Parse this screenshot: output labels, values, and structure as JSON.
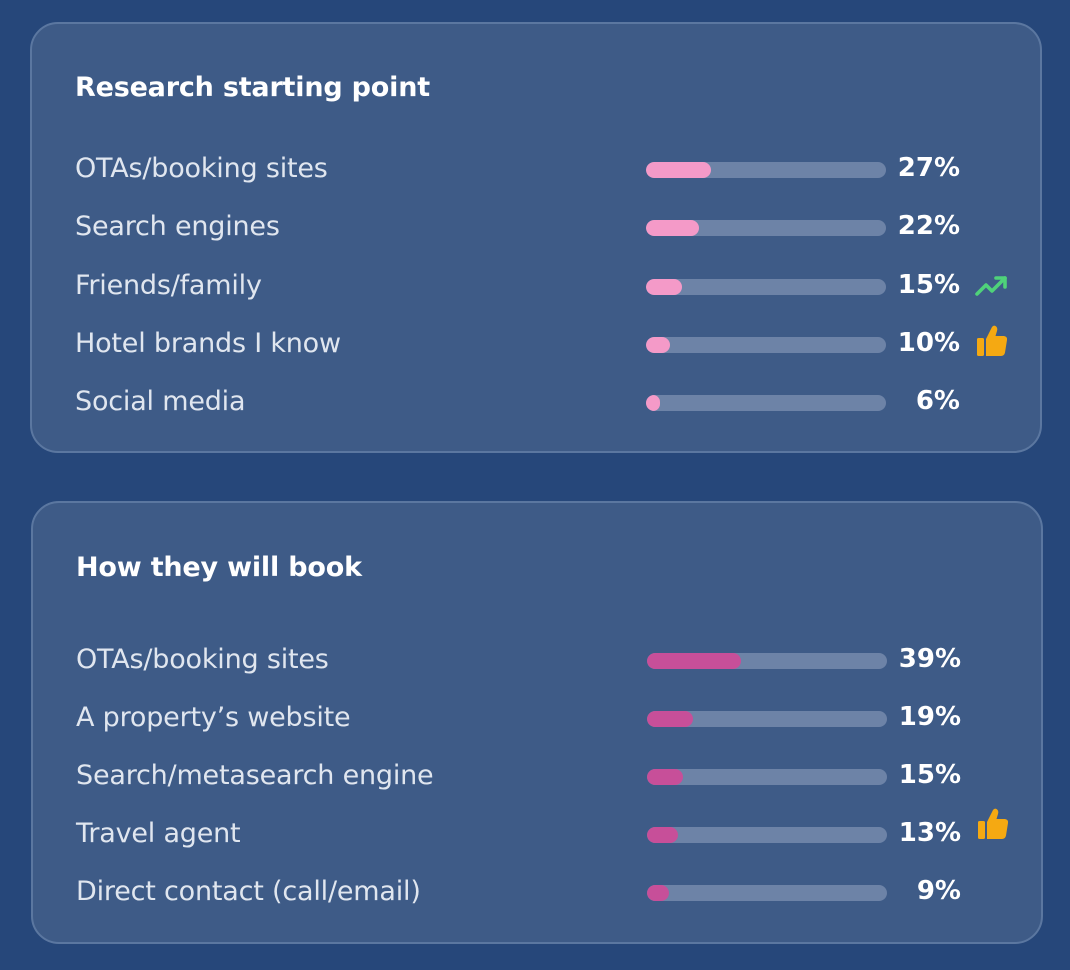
{
  "chart_data": [
    {
      "type": "bar",
      "orientation": "horizontal",
      "title": "Research starting point",
      "categories": [
        "OTAs/booking sites",
        "Search engines",
        "Friends/family",
        "Hotel brands I know",
        "Social media"
      ],
      "values": [
        27,
        22,
        15,
        10,
        6
      ],
      "value_labels": [
        "27%",
        "22%",
        "15%",
        "10%",
        "6%"
      ],
      "xlim": [
        0,
        100
      ],
      "bar_color": "#f49ac8",
      "track_color": "#6d83a7",
      "icons": [
        "",
        "",
        "trending-up-icon",
        "thumbs-up-icon",
        ""
      ]
    },
    {
      "type": "bar",
      "orientation": "horizontal",
      "title": "How they will book",
      "categories": [
        "OTAs/booking sites",
        "A property’s website",
        "Search/metasearch engine",
        "Travel agent",
        "Direct contact (call/email)"
      ],
      "values": [
        39,
        19,
        15,
        13,
        9
      ],
      "value_labels": [
        "39%",
        "19%",
        "15%",
        "13%",
        "9%"
      ],
      "xlim": [
        0,
        100
      ],
      "bar_color": "#c74f99",
      "track_color": "#6d83a7",
      "icons": [
        "",
        "",
        "",
        "thumbs-up-icon",
        ""
      ]
    }
  ],
  "colors": {
    "background": "#26477a",
    "card": "#3e5b87",
    "card_border": "#5b77a0",
    "trend_icon": "#4fd27a",
    "thumb_icon": "#f5a912"
  }
}
